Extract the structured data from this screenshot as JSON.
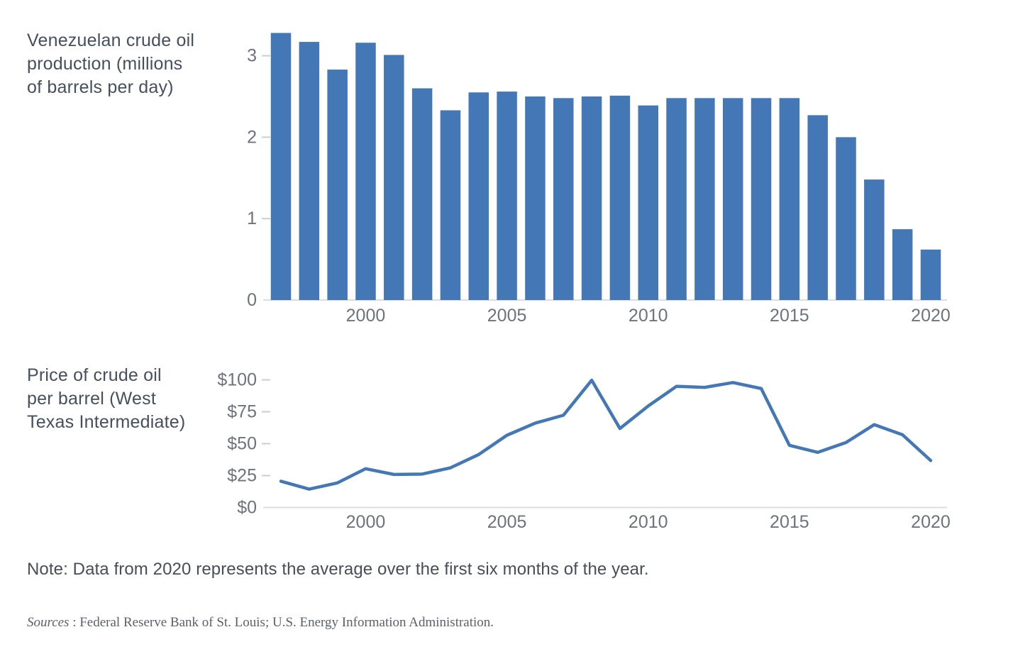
{
  "note": "Note: Data from 2020 represents the average over the first six months of the year.",
  "sources_label": "Sources",
  "sources_rest": " : Federal Reserve Bank of St. Louis; U.S. Energy Information Administration.",
  "colors": {
    "accent_blue": "#4477b5",
    "axis_text": "#6d737d",
    "title_text": "#454f5e",
    "baseline_gray": "#dcdde0",
    "tick_dash_gray": "#cbced3"
  },
  "chart_data": [
    {
      "type": "bar",
      "title": "Venezuelan crude oil production (millions of barrels per day)",
      "title_lines": [
        "Venezuelan crude oil",
        "production (millions",
        "of barrels per day)"
      ],
      "x": [
        1997,
        1998,
        1999,
        2000,
        2001,
        2002,
        2003,
        2004,
        2005,
        2006,
        2007,
        2008,
        2009,
        2010,
        2011,
        2012,
        2013,
        2014,
        2015,
        2016,
        2017,
        2018,
        2019,
        2020
      ],
      "values": [
        3.28,
        3.17,
        2.83,
        3.16,
        3.01,
        2.6,
        2.33,
        2.55,
        2.56,
        2.5,
        2.48,
        2.5,
        2.51,
        2.39,
        2.48,
        2.48,
        2.48,
        2.48,
        2.48,
        2.27,
        2.0,
        1.48,
        0.87,
        0.62
      ],
      "x_tick_years": [
        2000,
        2005,
        2010,
        2015,
        2020
      ],
      "x_tick_labels": [
        "2000",
        "2005",
        "2010",
        "2015",
        "2020"
      ],
      "y_ticks": [
        0,
        1,
        2,
        3
      ],
      "y_tick_labels": [
        "0",
        "1",
        "2",
        "3"
      ],
      "ylim": [
        0,
        3.4
      ],
      "grid": false,
      "legend": "none",
      "color": "#4477b5"
    },
    {
      "type": "line",
      "title": "Price of crude oil per barrel (West Texas Intermediate)",
      "title_lines": [
        "Price of crude oil",
        "per barrel (West",
        "Texas Intermediate)"
      ],
      "x": [
        1997,
        1998,
        1999,
        2000,
        2001,
        2002,
        2003,
        2004,
        2005,
        2006,
        2007,
        2008,
        2009,
        2010,
        2011,
        2012,
        2013,
        2014,
        2015,
        2016,
        2017,
        2018,
        2019,
        2020
      ],
      "values": [
        20.6,
        14.4,
        19.3,
        30.4,
        25.9,
        26.2,
        31.1,
        41.5,
        56.6,
        66.1,
        72.3,
        99.7,
        61.9,
        79.5,
        94.9,
        94.1,
        97.9,
        93.2,
        48.7,
        43.2,
        50.9,
        64.9,
        57.0,
        36.8
      ],
      "x_tick_years": [
        2000,
        2005,
        2010,
        2015,
        2020
      ],
      "x_tick_labels": [
        "2000",
        "2005",
        "2010",
        "2015",
        "2020"
      ],
      "y_ticks": [
        0,
        25,
        50,
        75,
        100
      ],
      "y_tick_labels": [
        "$0",
        "$25",
        "$50",
        "$75",
        "$100"
      ],
      "ylim": [
        0,
        105
      ],
      "grid": false,
      "legend": "none",
      "color": "#4477b5"
    }
  ]
}
